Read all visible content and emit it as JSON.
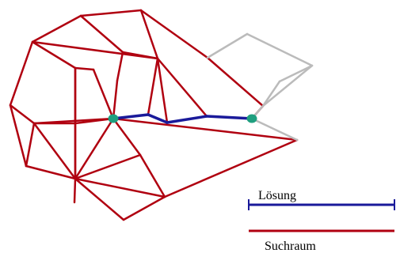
{
  "legend": {
    "solution_label": "Lösung",
    "search_space_label": "Suchraum"
  },
  "colors": {
    "search_space": "#b00010",
    "solution": "#1a1a9a",
    "unexplored": "#bbbbbb",
    "endpoint": "#1f9f7f",
    "background": "#ffffff"
  }
}
